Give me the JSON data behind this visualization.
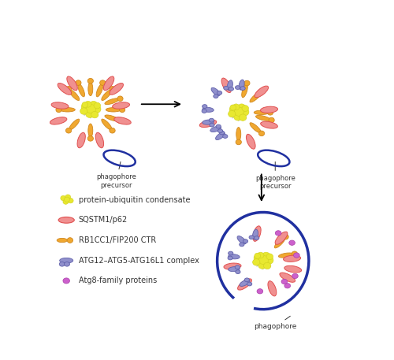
{
  "figsize": [
    5.0,
    4.57
  ],
  "dpi": 100,
  "bg_color": "#ffffff",
  "colors": {
    "yellow_ball": "#e8e830",
    "yellow_edge": "#d0d020",
    "gray_net": "#aaaaaa",
    "sqstm1_fill": "#f09090",
    "sqstm1_edge": "#e05050",
    "rb1cc1_fill": "#f0a830",
    "rb1cc1_edge": "#d08820",
    "atg_fill": "#9090cc",
    "atg_edge": "#6060aa",
    "atg8_fill": "#cc60cc",
    "atg8_edge": "#aa40aa",
    "phagophore": "#2030a0",
    "text_color": "#333333"
  },
  "p1": [
    0.135,
    0.76
  ],
  "p2": [
    0.62,
    0.75
  ],
  "p3": [
    0.7,
    0.215
  ],
  "scale": 1.0
}
